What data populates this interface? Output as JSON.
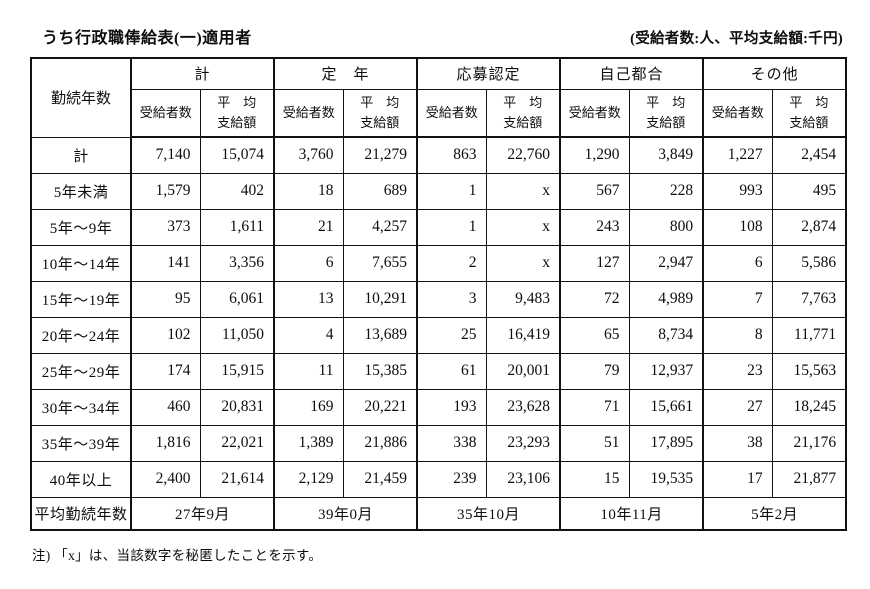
{
  "page": {
    "title": "うち行政職俸給表(一)適用者",
    "unit_note": "(受給者数:人、平均支給額:千円)",
    "footnote": "注) 「x」は、当該数字を秘匿したことを示す。"
  },
  "table": {
    "corner_header": "勤続年数",
    "groups": [
      "計",
      "定　年",
      "応募認定",
      "自己都合",
      "その他"
    ],
    "sub_count": "受給者数",
    "sub_avg": "平　均\n支給額",
    "rows": [
      {
        "label": "計",
        "values": [
          "7,140",
          "15,074",
          "3,760",
          "21,279",
          "863",
          "22,760",
          "1,290",
          "3,849",
          "1,227",
          "2,454"
        ]
      },
      {
        "label": "5年未満",
        "values": [
          "1,579",
          "402",
          "18",
          "689",
          "1",
          "x",
          "567",
          "228",
          "993",
          "495"
        ]
      },
      {
        "label": "5年〜9年",
        "values": [
          "373",
          "1,611",
          "21",
          "4,257",
          "1",
          "x",
          "243",
          "800",
          "108",
          "2,874"
        ]
      },
      {
        "label": "10年〜14年",
        "values": [
          "141",
          "3,356",
          "6",
          "7,655",
          "2",
          "x",
          "127",
          "2,947",
          "6",
          "5,586"
        ]
      },
      {
        "label": "15年〜19年",
        "values": [
          "95",
          "6,061",
          "13",
          "10,291",
          "3",
          "9,483",
          "72",
          "4,989",
          "7",
          "7,763"
        ]
      },
      {
        "label": "20年〜24年",
        "values": [
          "102",
          "11,050",
          "4",
          "13,689",
          "25",
          "16,419",
          "65",
          "8,734",
          "8",
          "11,771"
        ]
      },
      {
        "label": "25年〜29年",
        "values": [
          "174",
          "15,915",
          "11",
          "15,385",
          "61",
          "20,001",
          "79",
          "12,937",
          "23",
          "15,563"
        ]
      },
      {
        "label": "30年〜34年",
        "values": [
          "460",
          "20,831",
          "169",
          "20,221",
          "193",
          "23,628",
          "71",
          "15,661",
          "27",
          "18,245"
        ]
      },
      {
        "label": "35年〜39年",
        "values": [
          "1,816",
          "22,021",
          "1,389",
          "21,886",
          "338",
          "23,293",
          "51",
          "17,895",
          "38",
          "21,176"
        ]
      },
      {
        "label": "40年以上",
        "values": [
          "2,400",
          "21,614",
          "2,129",
          "21,459",
          "239",
          "23,106",
          "15",
          "19,535",
          "17",
          "21,877"
        ]
      }
    ],
    "footer": {
      "label": "平均勤続年数",
      "values": [
        "27年9月",
        "39年0月",
        "35年10月",
        "10年11月",
        "5年2月"
      ]
    }
  }
}
